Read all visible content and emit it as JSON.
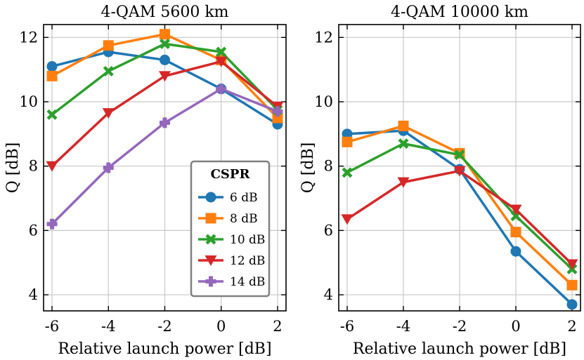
{
  "chart_data": [
    {
      "type": "line",
      "title": "4-QAM 5600 km",
      "xlabel": "Relative launch power [dB]",
      "ylabel": "Q [dB]",
      "x": [
        -6,
        -4,
        -2,
        0,
        2
      ],
      "x_ticks": [
        "-6",
        "-4",
        "-2",
        "0",
        "2"
      ],
      "y_ticks": [
        "4",
        "6",
        "8",
        "10",
        "12"
      ],
      "xlim": [
        -6.3,
        2.3
      ],
      "ylim": [
        3.5,
        12.4
      ],
      "grid": true,
      "legend": {
        "title": "CSPR",
        "placement": "lower-right",
        "entries": [
          "6 dB",
          "8 dB",
          "10 dB",
          "12 dB",
          "14 dB"
        ]
      },
      "series": [
        {
          "name": "6 dB",
          "color": "#1f77b4",
          "marker": "circle",
          "values": [
            11.1,
            11.55,
            11.3,
            10.4,
            9.3
          ]
        },
        {
          "name": "8 dB",
          "color": "#ff7f0e",
          "marker": "square",
          "values": [
            10.8,
            11.75,
            12.1,
            11.3,
            9.5
          ]
        },
        {
          "name": "10 dB",
          "color": "#2ca02c",
          "marker": "x-filled",
          "values": [
            9.6,
            10.95,
            11.8,
            11.55,
            9.75
          ]
        },
        {
          "name": "12 dB",
          "color": "#d62728",
          "marker": "triangle-down",
          "values": [
            8.0,
            9.65,
            10.8,
            11.25,
            9.85
          ]
        },
        {
          "name": "14 dB",
          "color": "#9467bd",
          "marker": "plus-filled",
          "values": [
            6.2,
            7.95,
            9.35,
            10.4,
            9.7
          ]
        }
      ]
    },
    {
      "type": "line",
      "title": "4-QAM 10000 km",
      "xlabel": "Relative launch power [dB]",
      "ylabel": "Q [dB]",
      "x": [
        -6,
        -4,
        -2,
        0,
        2
      ],
      "x_ticks": [
        "-6",
        "-4",
        "-2",
        "0",
        "2"
      ],
      "y_ticks": [
        "4",
        "6",
        "8",
        "10",
        "12"
      ],
      "xlim": [
        -6.3,
        2.3
      ],
      "ylim": [
        3.5,
        12.4
      ],
      "grid": true,
      "series": [
        {
          "name": "6 dB",
          "color": "#1f77b4",
          "marker": "circle",
          "values": [
            9.0,
            9.1,
            7.9,
            5.35,
            3.7
          ]
        },
        {
          "name": "8 dB",
          "color": "#ff7f0e",
          "marker": "square",
          "values": [
            8.75,
            9.25,
            8.4,
            5.95,
            4.3
          ]
        },
        {
          "name": "10 dB",
          "color": "#2ca02c",
          "marker": "x-filled",
          "values": [
            7.8,
            8.7,
            8.35,
            6.45,
            4.8
          ]
        },
        {
          "name": "12 dB",
          "color": "#d62728",
          "marker": "triangle-down",
          "values": [
            6.35,
            7.5,
            7.85,
            6.65,
            4.95
          ]
        }
      ]
    }
  ]
}
